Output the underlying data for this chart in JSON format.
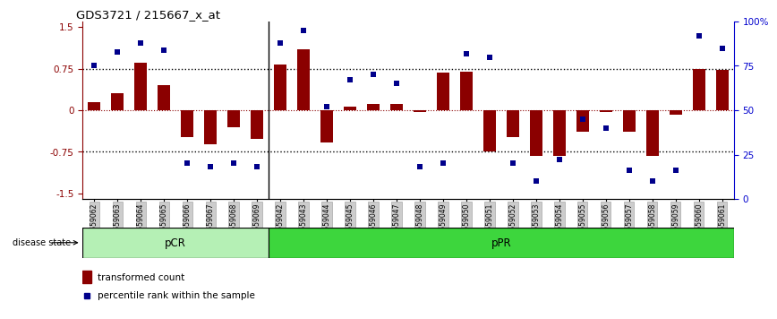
{
  "title": "GDS3721 / 215667_x_at",
  "categories": [
    "GSM559062",
    "GSM559063",
    "GSM559064",
    "GSM559065",
    "GSM559066",
    "GSM559067",
    "GSM559068",
    "GSM559069",
    "GSM559042",
    "GSM559043",
    "GSM559044",
    "GSM559045",
    "GSM559046",
    "GSM559047",
    "GSM559048",
    "GSM559049",
    "GSM559050",
    "GSM559051",
    "GSM559052",
    "GSM559053",
    "GSM559054",
    "GSM559055",
    "GSM559056",
    "GSM559057",
    "GSM559058",
    "GSM559059",
    "GSM559060",
    "GSM559061"
  ],
  "bar_values": [
    0.15,
    0.3,
    0.85,
    0.45,
    -0.48,
    -0.62,
    -0.3,
    -0.52,
    0.82,
    1.1,
    -0.58,
    0.07,
    0.12,
    0.12,
    -0.04,
    0.68,
    0.7,
    -0.75,
    -0.48,
    -0.82,
    -0.82,
    -0.38,
    -0.04,
    -0.38,
    -0.82,
    -0.08,
    0.75,
    0.72
  ],
  "dot_values": [
    75,
    83,
    88,
    84,
    20,
    18,
    20,
    18,
    88,
    95,
    52,
    67,
    70,
    65,
    18,
    20,
    82,
    80,
    20,
    10,
    22,
    45,
    40,
    16,
    10,
    16,
    92,
    85
  ],
  "pcr_count": 8,
  "ppr_count": 20,
  "ylim_left": [
    -1.6,
    1.6
  ],
  "yticks_left": [
    -1.5,
    -0.75,
    0.0,
    0.75,
    1.5
  ],
  "ylim_right": [
    0,
    100
  ],
  "yticks_right": [
    0,
    25,
    50,
    75,
    100
  ],
  "bar_color": "#8B0000",
  "dot_color": "#00008B",
  "pcr_color": "#b5f0b5",
  "ppr_color": "#3dd63d",
  "legend_bar_label": "transformed count",
  "legend_dot_label": "percentile rank within the sample",
  "disease_state_label": "disease state",
  "pcr_label": "pCR",
  "ppr_label": "pPR"
}
